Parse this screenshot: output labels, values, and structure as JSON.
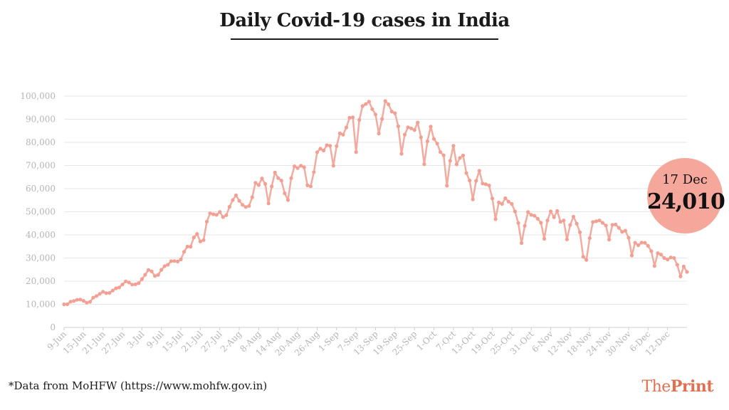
{
  "title": "Daily Covid-19 cases in India",
  "footnote": "*Data from MoHFW (https://www.mohfw.gov.in)",
  "brand": {
    "the": "The",
    "print": "Print"
  },
  "colors": {
    "line": "#f2ab9f",
    "marker": "#f2a093",
    "badge": "#f4a79a",
    "grid": "#e6e6e6",
    "axis_text": "#b5b5b5",
    "brand": "#e0704f"
  },
  "callout": {
    "date": "17 Dec",
    "value": "24,010"
  },
  "chart_data": {
    "type": "line",
    "title": "Daily Covid-19 cases in India",
    "xlabel": "",
    "ylabel": "",
    "ylim": [
      0,
      100000
    ],
    "grid": true,
    "yticks": [
      "0",
      "10,000",
      "20,000",
      "30,000",
      "40,000",
      "50,000",
      "60,000",
      "70,000",
      "80,000",
      "90,000",
      "100,000"
    ],
    "x_tick_labels": [
      "9-Jun",
      "15-Jun",
      "21-Jun",
      "27-Jun",
      "3-Jul",
      "9-Jul",
      "15-Jul",
      "21-Jul",
      "27-Jul",
      "2-Aug",
      "8-Aug",
      "14-Aug",
      "20-Aug",
      "26-Aug",
      "1-Sep",
      "7-Sep",
      "13-Sep",
      "19-Sep",
      "25-Sep",
      "1-Oct",
      "7-Oct",
      "13-Oct",
      "19-Oct",
      "25-Oct",
      "31-Oct",
      "6-Nov",
      "12-Nov",
      "18-Nov",
      "24-Nov",
      "30-Nov",
      "6-Dec",
      "12-Dec"
    ],
    "start_date": "9-Jun",
    "end_date": "17-Dec",
    "series": [
      {
        "values": [
          9987,
          9985,
          11128,
          11458,
          11929,
          12051,
          11502,
          10667,
          11090,
          12881,
          13586,
          14516,
          15413,
          14821,
          14933,
          15968,
          16922,
          17296,
          18552,
          19906,
          19459,
          18522,
          18653,
          19148,
          20903,
          22771,
          24850,
          24248,
          22252,
          22752,
          24879,
          26506,
          27114,
          28637,
          28701,
          28498,
          29429,
          32695,
          34956,
          34884,
          38902,
          40425,
          37148,
          37740,
          45720,
          49310,
          48916,
          48661,
          49931,
          47703,
          48513,
          52123,
          55078,
          57117,
          54736,
          52972,
          52050,
          52509,
          56282,
          62538,
          61537,
          64399,
          62064,
          53601,
          60963,
          66999,
          64553,
          63489,
          57982,
          55079,
          64531,
          69652,
          68898,
          69878,
          69239,
          61408,
          60975,
          67151,
          75760,
          77266,
          76472,
          78761,
          78512,
          69921,
          78357,
          83883,
          83341,
          86432,
          90632,
          90802,
          75809,
          89706,
          95735,
          96551,
          97570,
          94372,
          92071,
          83809,
          90123,
          97894,
          96424,
          93337,
          92605,
          86961,
          75083,
          83347,
          86508,
          86052,
          85362,
          88600,
          82170,
          70589,
          80472,
          86821,
          81484,
          79476,
          75829,
          74442,
          61267,
          72049,
          78524,
          70496,
          73272,
          74383,
          66732,
          63509,
          55342,
          63371,
          67708,
          62212,
          61871,
          61390,
          55722,
          46790,
          54044,
          53370,
          55839,
          54366,
          53370,
          50129,
          45148,
          36470,
          43893,
          49881,
          48648,
          48268,
          46963,
          45231,
          38310,
          46254,
          50210,
          47638,
          50356,
          45674,
          46253,
          38074,
          44281,
          47905,
          44879,
          41100,
          30548,
          29163,
          38617,
          45576,
          45882,
          46232,
          45209,
          44059,
          37975,
          44376,
          44489,
          43082,
          41322,
          41810,
          38772,
          31118,
          36604,
          35551,
          36652,
          36595,
          35271,
          32981,
          26567,
          32080,
          31521,
          30006,
          29398,
          30254,
          30005,
          27071,
          22065,
          26382,
          24010
        ]
      }
    ]
  }
}
